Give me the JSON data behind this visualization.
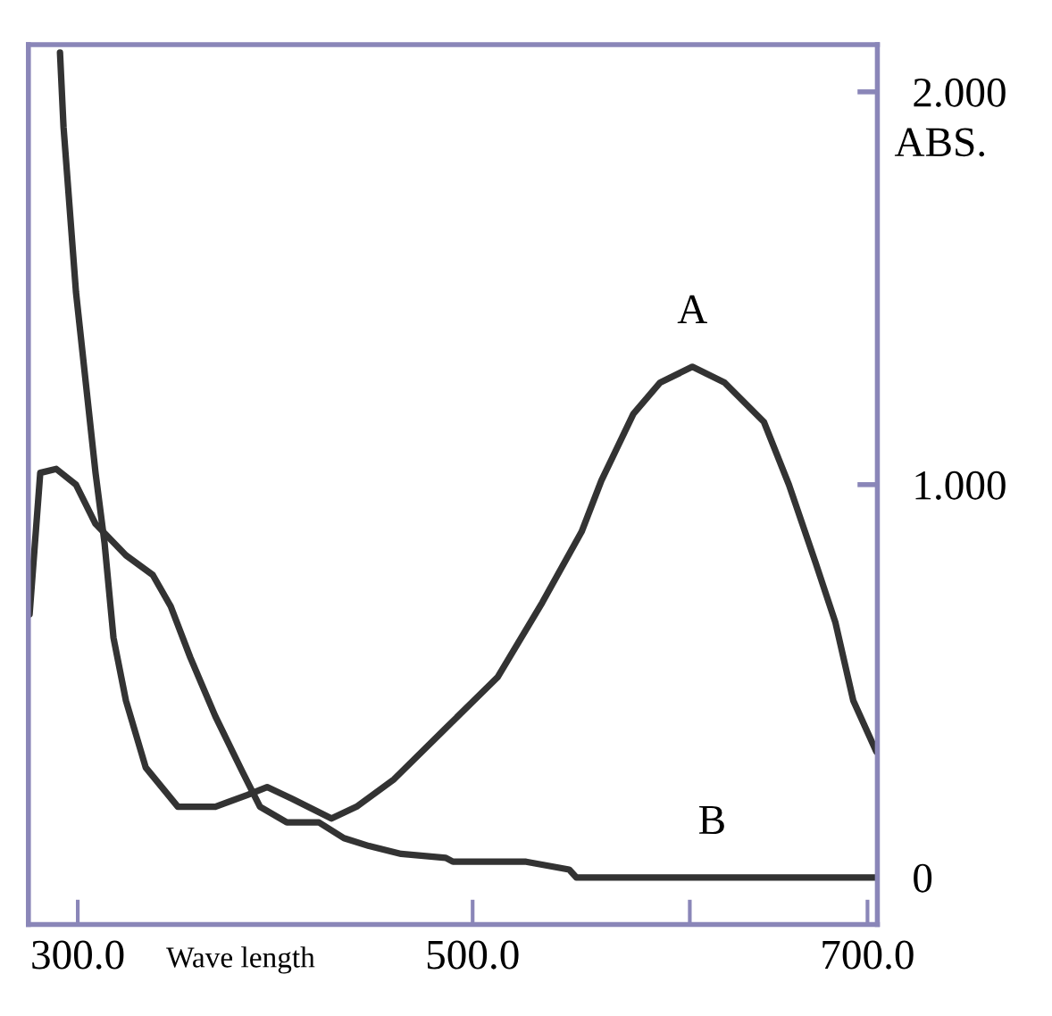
{
  "chart_data": {
    "type": "line",
    "xlabel": "Wave length",
    "ylabel": "ABS.",
    "xlim": [
      275,
      705
    ],
    "ylim": [
      -0.12,
      2.12
    ],
    "xticks": [
      {
        "value": 300,
        "label": "300.0"
      },
      {
        "value": 500,
        "label": "500.0"
      },
      {
        "value": 610,
        "label": null
      },
      {
        "value": 700,
        "label": "700.0"
      }
    ],
    "yticks": [
      {
        "value": 0,
        "label": "0"
      },
      {
        "value": 1,
        "label": "1.000"
      },
      {
        "value": 2,
        "label": "2.000"
      }
    ],
    "grid": false,
    "legend": false,
    "marker": "none",
    "line_style": "solid",
    "series": [
      {
        "name": "A",
        "color": "#333333",
        "x": [
          291.0,
          292.8,
          299.1,
          309.0,
          313.6,
          318.1,
          324.4,
          334.4,
          350.7,
          369.7,
          386.0,
          395.9,
          408.6,
          428.5,
          441.2,
          460.2,
          486.4,
          512.7,
          535.3,
          555.2,
          565.2,
          581.4,
          595.0,
          611.3,
          627.6,
          647.5,
          660.2,
          673.8,
          683.7,
          692.8,
          704.5
        ],
        "values": [
          2.1,
          1.91,
          1.49,
          1.03,
          0.85,
          0.61,
          0.45,
          0.28,
          0.18,
          0.18,
          0.21,
          0.23,
          0.2,
          0.15,
          0.18,
          0.25,
          0.38,
          0.51,
          0.7,
          0.88,
          1.01,
          1.18,
          1.26,
          1.3,
          1.26,
          1.16,
          1.0,
          0.8,
          0.65,
          0.45,
          0.32
        ]
      },
      {
        "name": "B",
        "color": "#333333",
        "x": [
          275.6,
          281.0,
          289.1,
          299.1,
          309.0,
          324.4,
          338.0,
          347.1,
          357.0,
          369.7,
          383.3,
          392.3,
          405.9,
          422.2,
          434.8,
          447.5,
          463.8,
          486.4,
          490.0,
          527.1,
          548.9,
          552.5,
          621.3,
          704.5
        ],
        "values": [
          0.67,
          1.03,
          1.04,
          1.0,
          0.9,
          0.82,
          0.77,
          0.69,
          0.56,
          0.41,
          0.27,
          0.18,
          0.14,
          0.14,
          0.1,
          0.08,
          0.06,
          0.05,
          0.04,
          0.04,
          0.02,
          0.0,
          0.0,
          0.0
        ]
      }
    ]
  }
}
